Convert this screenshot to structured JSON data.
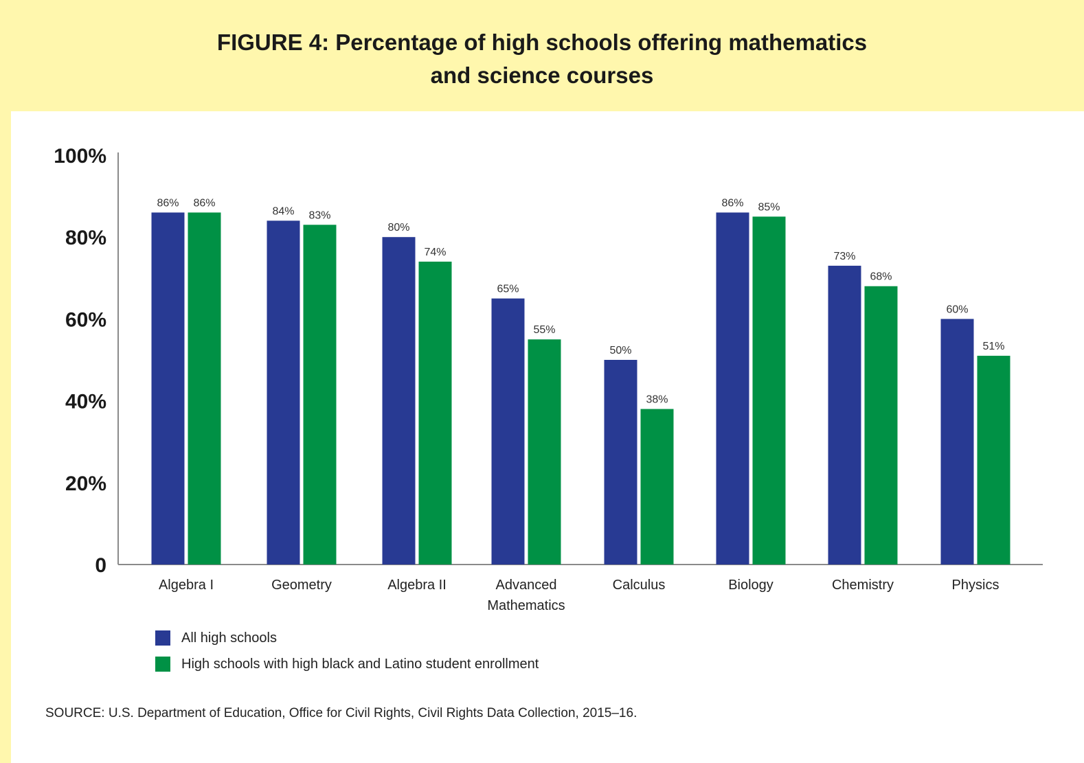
{
  "header": {
    "title_line1": "FIGURE 4: Percentage of high schools offering mathematics",
    "title_line2": "and science courses"
  },
  "colors": {
    "background": "#fff7ad",
    "series_all": "#283a93",
    "series_high": "#009145",
    "axis": "#8a8a8a"
  },
  "chart_data": {
    "type": "bar",
    "title": "FIGURE 4: Percentage of high schools offering mathematics and science courses",
    "categories": [
      "Algebra I",
      "Geometry",
      "Algebra II",
      "Advanced Mathematics",
      "Calculus",
      "Biology",
      "Chemistry",
      "Physics"
    ],
    "category_lines": [
      [
        "Algebra I"
      ],
      [
        "Geometry"
      ],
      [
        "Algebra II"
      ],
      [
        "Advanced",
        "Mathematics"
      ],
      [
        "Calculus"
      ],
      [
        "Biology"
      ],
      [
        "Chemistry"
      ],
      [
        "Physics"
      ]
    ],
    "series": [
      {
        "name": "All high schools",
        "values": [
          86,
          84,
          80,
          65,
          50,
          86,
          73,
          60
        ],
        "labels": [
          "86%",
          "84%",
          "80%",
          "65%",
          "50%",
          "86%",
          "73%",
          "60%"
        ]
      },
      {
        "name": "High schools with high black and Latino student enrollment",
        "values": [
          86,
          83,
          74,
          55,
          38,
          85,
          68,
          51
        ],
        "labels": [
          "86%",
          "83%",
          "74%",
          "55%",
          "38%",
          "85%",
          "68%",
          "51%"
        ]
      }
    ],
    "y_ticks": [
      0,
      20,
      40,
      60,
      80,
      100
    ],
    "y_tick_labels": [
      "0",
      "20%",
      "40%",
      "60%",
      "80%",
      "100%"
    ],
    "ylim": [
      0,
      100
    ],
    "grid": false,
    "legend_position": "bottom-left"
  },
  "legend": {
    "items": [
      "All high schools",
      "High schools with high black and Latino student enrollment"
    ]
  },
  "footer": {
    "source": "SOURCE: U.S. Department of Education, Office for Civil Rights, Civil Rights Data Collection, 2015–16."
  }
}
